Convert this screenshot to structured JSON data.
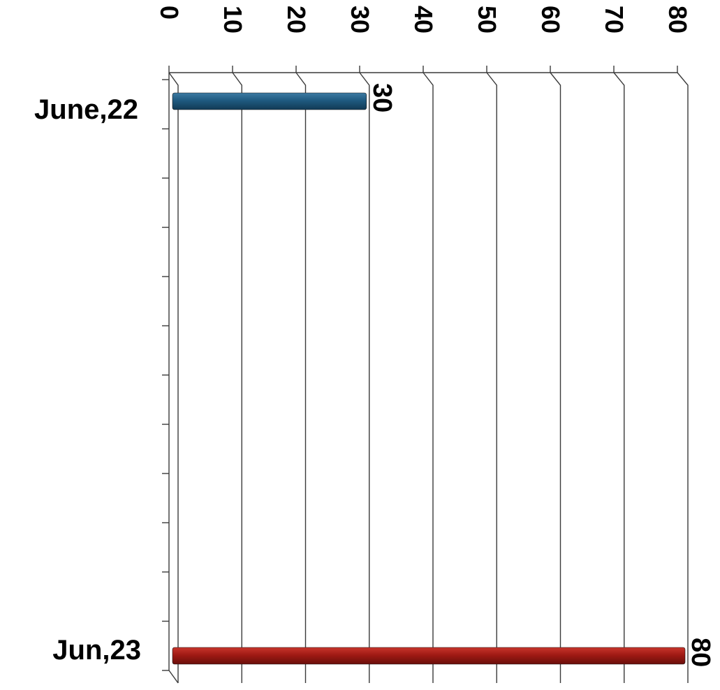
{
  "chart_data": {
    "type": "bar",
    "orientation": "horizontal",
    "categories": [
      "June,22",
      "Jun,23"
    ],
    "values": [
      30,
      80
    ],
    "data_labels": [
      "30",
      "80"
    ],
    "bar_colors": [
      "#1f5a80",
      "#a01a14"
    ],
    "title": "",
    "xlabel": "",
    "ylabel": "",
    "xlim": [
      0,
      80
    ],
    "ticks": [
      0,
      10,
      20,
      30,
      40,
      50,
      60,
      70,
      80
    ],
    "tick_labels": [
      "0",
      "10",
      "20",
      "30",
      "40",
      "50",
      "60",
      "70",
      "80"
    ],
    "grid": true,
    "legend": "none"
  }
}
